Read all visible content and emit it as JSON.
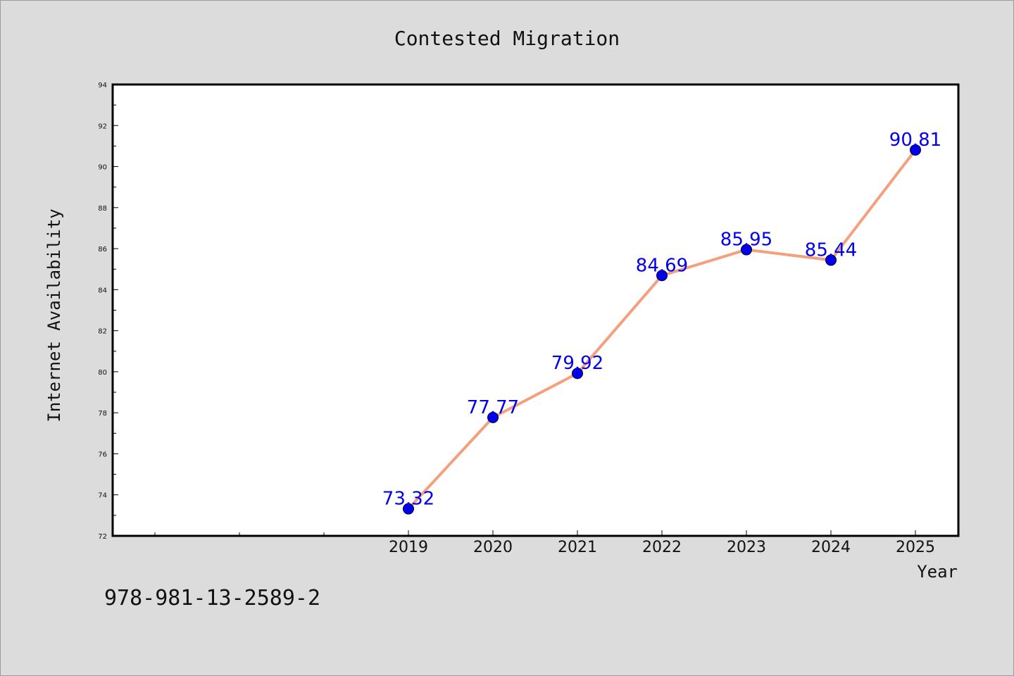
{
  "chart_data": {
    "type": "line",
    "title": "Contested Migration",
    "xlabel": "Year",
    "ylabel": "Internet Availability",
    "categories": [
      "2019",
      "2020",
      "2021",
      "2022",
      "2023",
      "2024",
      "2025"
    ],
    "series": [
      {
        "values": [
          73.32,
          77.77,
          79.92,
          84.69,
          85.95,
          85.44,
          90.81
        ]
      }
    ],
    "data_labels": [
      "73.32",
      "77.77",
      "79.92",
      "84.69",
      "85.95",
      "85.44",
      "90.81"
    ],
    "ylim": [
      72,
      94
    ],
    "yticks": [
      "72",
      "74",
      "76",
      "78",
      "80",
      "82",
      "84",
      "86",
      "88",
      "90",
      "92",
      "94"
    ],
    "grid": false,
    "line_color": "#f4a07e",
    "marker_color": "#0000ee",
    "label_color": "#0000ee"
  },
  "footer": {
    "isbn": "978-981-13-2589-2"
  }
}
